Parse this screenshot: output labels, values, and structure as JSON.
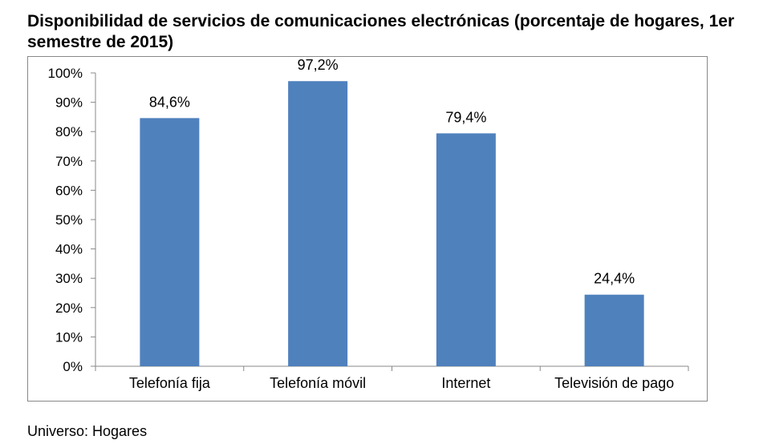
{
  "chart_data": {
    "type": "bar",
    "title": "Disponibilidad de servicios de comunicaciones electrónicas (porcentaje de hogares, 1er semestre de 2015)",
    "categories": [
      "Telefonía fija",
      "Telefonía móvil",
      "Internet",
      "Televisión de pago"
    ],
    "values": [
      84.6,
      97.2,
      79.4,
      24.4
    ],
    "data_labels": [
      "84,6%",
      "97,2%",
      "79,4%",
      "24,4%"
    ],
    "yticks": [
      "0%",
      "10%",
      "20%",
      "30%",
      "40%",
      "50%",
      "60%",
      "70%",
      "80%",
      "90%",
      "100%"
    ],
    "ylim": [
      0,
      100
    ],
    "bar_color": "#4f81bd",
    "grid": false,
    "legend": "none"
  },
  "footnote": "Universo: Hogares"
}
